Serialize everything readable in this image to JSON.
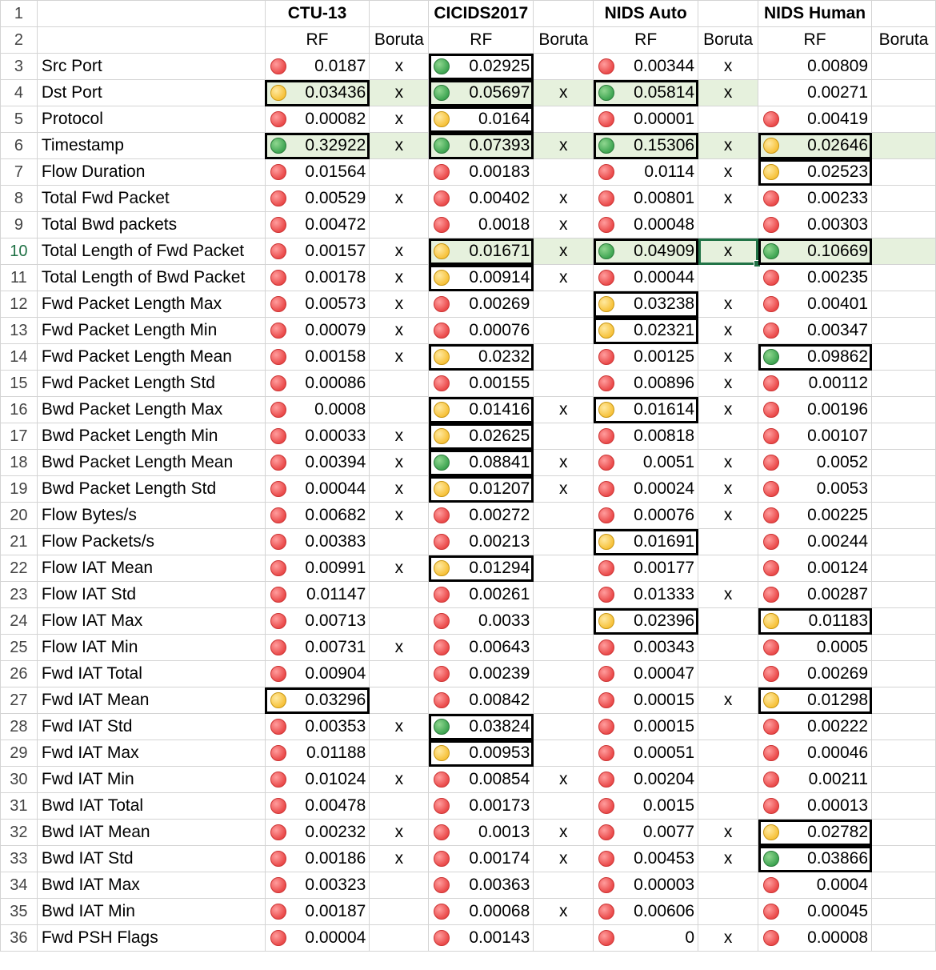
{
  "colors": {
    "red": "#ea4a4a",
    "yellow": "#f7c23b",
    "green": "#3fa552",
    "selection": "#217346",
    "highlight_fill": "#e6f1dd"
  },
  "datasets": [
    "CTU-13",
    "CICIDS2017",
    "NIDS Auto",
    "NIDS Human"
  ],
  "subheaders": [
    "RF",
    "Boruta",
    "RF",
    "Boruta",
    "RF",
    "Boruta",
    "RF",
    "Boruta"
  ],
  "header_row_numbers": [
    "1",
    "2"
  ],
  "rows": [
    {
      "n": "3",
      "label": "Src Port",
      "cells": [
        {
          "icon": "red",
          "value": "0.0187",
          "boruta": "x"
        },
        {
          "icon": "green",
          "value": "0.02925",
          "boruta": "",
          "box": true
        },
        {
          "icon": "red",
          "value": "0.00344",
          "boruta": "x"
        },
        {
          "icon": "",
          "value": "0.00809",
          "boruta": ""
        }
      ]
    },
    {
      "n": "4",
      "label": "Dst Port",
      "cells": [
        {
          "icon": "yellow",
          "value": "0.03436",
          "boruta": "x",
          "box": true,
          "fill": true
        },
        {
          "icon": "green",
          "value": "0.05697",
          "boruta": "x",
          "box": true,
          "fill": true
        },
        {
          "icon": "green",
          "value": "0.05814",
          "boruta": "x",
          "box": true,
          "fill": true
        },
        {
          "icon": "",
          "value": "0.00271",
          "boruta": ""
        }
      ]
    },
    {
      "n": "5",
      "label": "Protocol",
      "cells": [
        {
          "icon": "red",
          "value": "0.00082",
          "boruta": "x"
        },
        {
          "icon": "yellow",
          "value": "0.0164",
          "boruta": "",
          "box": true
        },
        {
          "icon": "red",
          "value": "0.00001",
          "boruta": ""
        },
        {
          "icon": "red",
          "value": "0.00419",
          "boruta": ""
        }
      ]
    },
    {
      "n": "6",
      "label": "Timestamp",
      "cells": [
        {
          "icon": "green",
          "value": "0.32922",
          "boruta": "x",
          "box": true,
          "fill": true
        },
        {
          "icon": "green",
          "value": "0.07393",
          "boruta": "x",
          "box": true,
          "fill": true
        },
        {
          "icon": "green",
          "value": "0.15306",
          "boruta": "x",
          "box": true,
          "fill": true
        },
        {
          "icon": "yellow",
          "value": "0.02646",
          "boruta": "",
          "box": true,
          "fill": true
        }
      ]
    },
    {
      "n": "7",
      "label": "Flow Duration",
      "cells": [
        {
          "icon": "red",
          "value": "0.01564",
          "boruta": ""
        },
        {
          "icon": "red",
          "value": "0.00183",
          "boruta": ""
        },
        {
          "icon": "red",
          "value": "0.0114",
          "boruta": "x"
        },
        {
          "icon": "yellow",
          "value": "0.02523",
          "boruta": "",
          "box": true
        }
      ]
    },
    {
      "n": "8",
      "label": "Total Fwd Packet",
      "cells": [
        {
          "icon": "red",
          "value": "0.00529",
          "boruta": "x"
        },
        {
          "icon": "red",
          "value": "0.00402",
          "boruta": "x"
        },
        {
          "icon": "red",
          "value": "0.00801",
          "boruta": "x"
        },
        {
          "icon": "red",
          "value": "0.00233",
          "boruta": ""
        }
      ]
    },
    {
      "n": "9",
      "label": "Total Bwd packets",
      "cells": [
        {
          "icon": "red",
          "value": "0.00472",
          "boruta": ""
        },
        {
          "icon": "red",
          "value": "0.0018",
          "boruta": "x"
        },
        {
          "icon": "red",
          "value": "0.00048",
          "boruta": ""
        },
        {
          "icon": "red",
          "value": "0.00303",
          "boruta": ""
        }
      ]
    },
    {
      "n": "10",
      "label": "Total Length of Fwd Packet",
      "selected": true,
      "cells": [
        {
          "icon": "red",
          "value": "0.00157",
          "boruta": "x"
        },
        {
          "icon": "yellow",
          "value": "0.01671",
          "boruta": "x",
          "box": true,
          "fill": true
        },
        {
          "icon": "green",
          "value": "0.04909",
          "boruta": "x",
          "box": true,
          "fill": true,
          "active_boruta": true
        },
        {
          "icon": "green",
          "value": "0.10669",
          "boruta": "",
          "box": true,
          "fill": true
        }
      ]
    },
    {
      "n": "11",
      "label": "Total Length of Bwd Packet",
      "cells": [
        {
          "icon": "red",
          "value": "0.00178",
          "boruta": "x"
        },
        {
          "icon": "yellow",
          "value": "0.00914",
          "boruta": "x",
          "box": true
        },
        {
          "icon": "red",
          "value": "0.00044",
          "boruta": ""
        },
        {
          "icon": "red",
          "value": "0.00235",
          "boruta": ""
        }
      ]
    },
    {
      "n": "12",
      "label": "Fwd Packet Length Max",
      "cells": [
        {
          "icon": "red",
          "value": "0.00573",
          "boruta": "x"
        },
        {
          "icon": "red",
          "value": "0.00269",
          "boruta": ""
        },
        {
          "icon": "yellow",
          "value": "0.03238",
          "boruta": "x",
          "box": true
        },
        {
          "icon": "red",
          "value": "0.00401",
          "boruta": ""
        }
      ]
    },
    {
      "n": "13",
      "label": "Fwd Packet Length Min",
      "cells": [
        {
          "icon": "red",
          "value": "0.00079",
          "boruta": "x"
        },
        {
          "icon": "red",
          "value": "0.00076",
          "boruta": ""
        },
        {
          "icon": "yellow",
          "value": "0.02321",
          "boruta": "x",
          "box": true
        },
        {
          "icon": "red",
          "value": "0.00347",
          "boruta": ""
        }
      ]
    },
    {
      "n": "14",
      "label": "Fwd Packet Length Mean",
      "cells": [
        {
          "icon": "red",
          "value": "0.00158",
          "boruta": "x"
        },
        {
          "icon": "yellow",
          "value": "0.0232",
          "boruta": "",
          "box": true
        },
        {
          "icon": "red",
          "value": "0.00125",
          "boruta": "x"
        },
        {
          "icon": "green",
          "value": "0.09862",
          "boruta": "",
          "box": true
        }
      ]
    },
    {
      "n": "15",
      "label": "Fwd Packet Length Std",
      "cells": [
        {
          "icon": "red",
          "value": "0.00086",
          "boruta": ""
        },
        {
          "icon": "red",
          "value": "0.00155",
          "boruta": ""
        },
        {
          "icon": "red",
          "value": "0.00896",
          "boruta": "x"
        },
        {
          "icon": "red",
          "value": "0.00112",
          "boruta": ""
        }
      ]
    },
    {
      "n": "16",
      "label": "Bwd Packet Length Max",
      "cells": [
        {
          "icon": "red",
          "value": "0.0008",
          "boruta": ""
        },
        {
          "icon": "yellow",
          "value": "0.01416",
          "boruta": "x",
          "box": true
        },
        {
          "icon": "yellow",
          "value": "0.01614",
          "boruta": "x",
          "box": true
        },
        {
          "icon": "red",
          "value": "0.00196",
          "boruta": ""
        }
      ]
    },
    {
      "n": "17",
      "label": "Bwd Packet Length Min",
      "cells": [
        {
          "icon": "red",
          "value": "0.00033",
          "boruta": "x"
        },
        {
          "icon": "yellow",
          "value": "0.02625",
          "boruta": "",
          "box": true
        },
        {
          "icon": "red",
          "value": "0.00818",
          "boruta": ""
        },
        {
          "icon": "red",
          "value": "0.00107",
          "boruta": ""
        }
      ]
    },
    {
      "n": "18",
      "label": "Bwd Packet Length Mean",
      "cells": [
        {
          "icon": "red",
          "value": "0.00394",
          "boruta": "x"
        },
        {
          "icon": "green",
          "value": "0.08841",
          "boruta": "x",
          "box": true
        },
        {
          "icon": "red",
          "value": "0.0051",
          "boruta": "x"
        },
        {
          "icon": "red",
          "value": "0.0052",
          "boruta": ""
        }
      ]
    },
    {
      "n": "19",
      "label": "Bwd Packet Length Std",
      "cells": [
        {
          "icon": "red",
          "value": "0.00044",
          "boruta": "x"
        },
        {
          "icon": "yellow",
          "value": "0.01207",
          "boruta": "x",
          "box": true
        },
        {
          "icon": "red",
          "value": "0.00024",
          "boruta": "x"
        },
        {
          "icon": "red",
          "value": "0.0053",
          "boruta": ""
        }
      ]
    },
    {
      "n": "20",
      "label": "Flow Bytes/s",
      "cells": [
        {
          "icon": "red",
          "value": "0.00682",
          "boruta": "x"
        },
        {
          "icon": "red",
          "value": "0.00272",
          "boruta": ""
        },
        {
          "icon": "red",
          "value": "0.00076",
          "boruta": "x"
        },
        {
          "icon": "red",
          "value": "0.00225",
          "boruta": ""
        }
      ]
    },
    {
      "n": "21",
      "label": "Flow Packets/s",
      "cells": [
        {
          "icon": "red",
          "value": "0.00383",
          "boruta": ""
        },
        {
          "icon": "red",
          "value": "0.00213",
          "boruta": ""
        },
        {
          "icon": "yellow",
          "value": "0.01691",
          "boruta": "",
          "box": true
        },
        {
          "icon": "red",
          "value": "0.00244",
          "boruta": ""
        }
      ]
    },
    {
      "n": "22",
      "label": "Flow IAT Mean",
      "cells": [
        {
          "icon": "red",
          "value": "0.00991",
          "boruta": "x"
        },
        {
          "icon": "yellow",
          "value": "0.01294",
          "boruta": "",
          "box": true
        },
        {
          "icon": "red",
          "value": "0.00177",
          "boruta": ""
        },
        {
          "icon": "red",
          "value": "0.00124",
          "boruta": ""
        }
      ]
    },
    {
      "n": "23",
      "label": "Flow IAT Std",
      "cells": [
        {
          "icon": "red",
          "value": "0.01147",
          "boruta": ""
        },
        {
          "icon": "red",
          "value": "0.00261",
          "boruta": ""
        },
        {
          "icon": "red",
          "value": "0.01333",
          "boruta": "x"
        },
        {
          "icon": "red",
          "value": "0.00287",
          "boruta": ""
        }
      ]
    },
    {
      "n": "24",
      "label": "Flow IAT Max",
      "cells": [
        {
          "icon": "red",
          "value": "0.00713",
          "boruta": ""
        },
        {
          "icon": "red",
          "value": "0.0033",
          "boruta": ""
        },
        {
          "icon": "yellow",
          "value": "0.02396",
          "boruta": "",
          "box": true
        },
        {
          "icon": "yellow",
          "value": "0.01183",
          "boruta": "",
          "box": true
        }
      ]
    },
    {
      "n": "25",
      "label": "Flow IAT Min",
      "cells": [
        {
          "icon": "red",
          "value": "0.00731",
          "boruta": "x"
        },
        {
          "icon": "red",
          "value": "0.00643",
          "boruta": ""
        },
        {
          "icon": "red",
          "value": "0.00343",
          "boruta": ""
        },
        {
          "icon": "red",
          "value": "0.0005",
          "boruta": ""
        }
      ]
    },
    {
      "n": "26",
      "label": "Fwd IAT Total",
      "cells": [
        {
          "icon": "red",
          "value": "0.00904",
          "boruta": ""
        },
        {
          "icon": "red",
          "value": "0.00239",
          "boruta": ""
        },
        {
          "icon": "red",
          "value": "0.00047",
          "boruta": ""
        },
        {
          "icon": "red",
          "value": "0.00269",
          "boruta": ""
        }
      ]
    },
    {
      "n": "27",
      "label": "Fwd IAT Mean",
      "cells": [
        {
          "icon": "yellow",
          "value": "0.03296",
          "boruta": "",
          "box": true
        },
        {
          "icon": "red",
          "value": "0.00842",
          "boruta": ""
        },
        {
          "icon": "red",
          "value": "0.00015",
          "boruta": "x"
        },
        {
          "icon": "yellow",
          "value": "0.01298",
          "boruta": "",
          "box": true
        }
      ]
    },
    {
      "n": "28",
      "label": "Fwd IAT Std",
      "cells": [
        {
          "icon": "red",
          "value": "0.00353",
          "boruta": "x"
        },
        {
          "icon": "green",
          "value": "0.03824",
          "boruta": "",
          "box": true
        },
        {
          "icon": "red",
          "value": "0.00015",
          "boruta": ""
        },
        {
          "icon": "red",
          "value": "0.00222",
          "boruta": ""
        }
      ]
    },
    {
      "n": "29",
      "label": "Fwd IAT Max",
      "cells": [
        {
          "icon": "red",
          "value": "0.01188",
          "boruta": ""
        },
        {
          "icon": "yellow",
          "value": "0.00953",
          "boruta": "",
          "box": true
        },
        {
          "icon": "red",
          "value": "0.00051",
          "boruta": ""
        },
        {
          "icon": "red",
          "value": "0.00046",
          "boruta": ""
        }
      ]
    },
    {
      "n": "30",
      "label": "Fwd IAT Min",
      "cells": [
        {
          "icon": "red",
          "value": "0.01024",
          "boruta": "x"
        },
        {
          "icon": "red",
          "value": "0.00854",
          "boruta": "x"
        },
        {
          "icon": "red",
          "value": "0.00204",
          "boruta": ""
        },
        {
          "icon": "red",
          "value": "0.00211",
          "boruta": ""
        }
      ]
    },
    {
      "n": "31",
      "label": "Bwd IAT Total",
      "cells": [
        {
          "icon": "red",
          "value": "0.00478",
          "boruta": ""
        },
        {
          "icon": "red",
          "value": "0.00173",
          "boruta": ""
        },
        {
          "icon": "red",
          "value": "0.0015",
          "boruta": ""
        },
        {
          "icon": "red",
          "value": "0.00013",
          "boruta": ""
        }
      ]
    },
    {
      "n": "32",
      "label": "Bwd IAT Mean",
      "cells": [
        {
          "icon": "red",
          "value": "0.00232",
          "boruta": "x"
        },
        {
          "icon": "red",
          "value": "0.0013",
          "boruta": "x"
        },
        {
          "icon": "red",
          "value": "0.0077",
          "boruta": "x"
        },
        {
          "icon": "yellow",
          "value": "0.02782",
          "boruta": "",
          "box": true
        }
      ]
    },
    {
      "n": "33",
      "label": "Bwd IAT Std",
      "cells": [
        {
          "icon": "red",
          "value": "0.00186",
          "boruta": "x"
        },
        {
          "icon": "red",
          "value": "0.00174",
          "boruta": "x"
        },
        {
          "icon": "red",
          "value": "0.00453",
          "boruta": "x"
        },
        {
          "icon": "green",
          "value": "0.03866",
          "boruta": "",
          "box": true
        }
      ]
    },
    {
      "n": "34",
      "label": "Bwd IAT Max",
      "cells": [
        {
          "icon": "red",
          "value": "0.00323",
          "boruta": ""
        },
        {
          "icon": "red",
          "value": "0.00363",
          "boruta": ""
        },
        {
          "icon": "red",
          "value": "0.00003",
          "boruta": ""
        },
        {
          "icon": "red",
          "value": "0.0004",
          "boruta": ""
        }
      ]
    },
    {
      "n": "35",
      "label": "Bwd IAT Min",
      "cells": [
        {
          "icon": "red",
          "value": "0.00187",
          "boruta": ""
        },
        {
          "icon": "red",
          "value": "0.00068",
          "boruta": "x"
        },
        {
          "icon": "red",
          "value": "0.00606",
          "boruta": ""
        },
        {
          "icon": "red",
          "value": "0.00045",
          "boruta": ""
        }
      ]
    },
    {
      "n": "36",
      "label": "Fwd PSH Flags",
      "cells": [
        {
          "icon": "red",
          "value": "0.00004",
          "boruta": ""
        },
        {
          "icon": "red",
          "value": "0.00143",
          "boruta": ""
        },
        {
          "icon": "red",
          "value": "0",
          "boruta": "x"
        },
        {
          "icon": "red",
          "value": "0.00008",
          "boruta": ""
        }
      ]
    }
  ]
}
